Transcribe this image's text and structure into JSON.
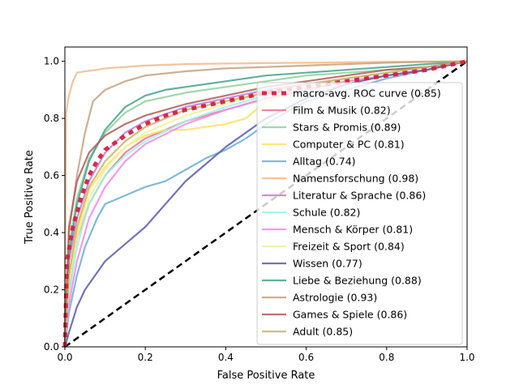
{
  "chart_data": {
    "type": "line",
    "xlabel": "False Positive Rate",
    "ylabel": "True Positive Rate",
    "xlim": [
      0,
      1
    ],
    "ylim": [
      0,
      1.05
    ],
    "xticks": [
      "0.0",
      "0.2",
      "0.4",
      "0.6",
      "0.8",
      "1.0"
    ],
    "yticks": [
      "0.0",
      "0.2",
      "0.4",
      "0.6",
      "0.8",
      "1.0"
    ],
    "grid": false,
    "legend_position": "lower-right",
    "chance_line": {
      "x": [
        0,
        1
      ],
      "y": [
        0,
        1
      ],
      "color": "#000000"
    },
    "series": [
      {
        "name": "macro-avg. ROC curve (0.85)",
        "color": "#d62040",
        "macro": true,
        "x": [
          0,
          0.005,
          0.02,
          0.04,
          0.06,
          0.08,
          0.1,
          0.15,
          0.2,
          0.25,
          0.3,
          0.35,
          0.4,
          0.5,
          0.6,
          0.7,
          0.8,
          0.9,
          1.0
        ],
        "y": [
          0,
          0.3,
          0.42,
          0.52,
          0.6,
          0.65,
          0.69,
          0.74,
          0.78,
          0.81,
          0.83,
          0.845,
          0.86,
          0.89,
          0.91,
          0.93,
          0.95,
          0.97,
          1.0
        ]
      },
      {
        "name": "Film & Musik (0.82)",
        "color": "#e9738a",
        "x": [
          0,
          0.01,
          0.03,
          0.06,
          0.1,
          0.15,
          0.2,
          0.3,
          0.4,
          0.5,
          0.6,
          0.7,
          0.8,
          0.9,
          1.0
        ],
        "y": [
          0,
          0.2,
          0.38,
          0.5,
          0.6,
          0.68,
          0.73,
          0.79,
          0.83,
          0.87,
          0.9,
          0.93,
          0.95,
          0.97,
          1.0
        ]
      },
      {
        "name": "Stars & Promis (0.89)",
        "color": "#8fd19a",
        "x": [
          0,
          0.01,
          0.03,
          0.06,
          0.1,
          0.15,
          0.2,
          0.3,
          0.4,
          0.5,
          0.6,
          0.7,
          0.8,
          0.9,
          1.0
        ],
        "y": [
          0,
          0.35,
          0.52,
          0.66,
          0.75,
          0.82,
          0.86,
          0.89,
          0.91,
          0.93,
          0.95,
          0.96,
          0.97,
          0.98,
          1.0
        ]
      },
      {
        "name": "Computer & PC (0.81)",
        "color": "#ffe060",
        "x": [
          0,
          0.01,
          0.03,
          0.06,
          0.1,
          0.15,
          0.2,
          0.25,
          0.3,
          0.4,
          0.45,
          0.5,
          0.6,
          0.7,
          0.8,
          0.9,
          1.0
        ],
        "y": [
          0,
          0.25,
          0.4,
          0.55,
          0.63,
          0.7,
          0.74,
          0.76,
          0.76,
          0.78,
          0.8,
          0.86,
          0.9,
          0.93,
          0.95,
          0.97,
          1.0
        ]
      },
      {
        "name": "Alltag (0.74)",
        "color": "#6aaed6",
        "x": [
          0,
          0.01,
          0.03,
          0.05,
          0.08,
          0.1,
          0.15,
          0.2,
          0.25,
          0.3,
          0.35,
          0.4,
          0.45,
          0.5,
          0.6,
          0.7,
          0.8,
          0.9,
          1.0
        ],
        "y": [
          0,
          0.12,
          0.25,
          0.35,
          0.45,
          0.5,
          0.53,
          0.56,
          0.58,
          0.62,
          0.66,
          0.69,
          0.73,
          0.78,
          0.86,
          0.9,
          0.94,
          0.97,
          1.0
        ]
      },
      {
        "name": "Namensforschung (0.98)",
        "color": "#f6b98a",
        "x": [
          0,
          0.003,
          0.01,
          0.02,
          0.03,
          0.05,
          0.08,
          0.1,
          0.15,
          0.2,
          0.3,
          0.4,
          0.6,
          0.8,
          1.0
        ],
        "y": [
          0,
          0.82,
          0.88,
          0.93,
          0.96,
          0.965,
          0.97,
          0.975,
          0.98,
          0.985,
          0.99,
          0.992,
          0.995,
          0.998,
          1.0
        ]
      },
      {
        "name": "Literatur & Sprache (0.86)",
        "color": "#c07ed8",
        "x": [
          0,
          0.01,
          0.03,
          0.06,
          0.1,
          0.15,
          0.2,
          0.3,
          0.4,
          0.5,
          0.6,
          0.7,
          0.8,
          0.9,
          1.0
        ],
        "y": [
          0,
          0.3,
          0.45,
          0.58,
          0.68,
          0.75,
          0.79,
          0.84,
          0.87,
          0.9,
          0.92,
          0.94,
          0.96,
          0.98,
          1.0
        ]
      },
      {
        "name": "Schule (0.82)",
        "color": "#9ef0f0",
        "x": [
          0,
          0.01,
          0.03,
          0.06,
          0.1,
          0.15,
          0.2,
          0.3,
          0.4,
          0.5,
          0.6,
          0.7,
          0.8,
          0.9,
          1.0
        ],
        "y": [
          0,
          0.18,
          0.35,
          0.5,
          0.6,
          0.67,
          0.72,
          0.79,
          0.84,
          0.88,
          0.91,
          0.94,
          0.96,
          0.98,
          1.0
        ]
      },
      {
        "name": "Mensch & Körper (0.81)",
        "color": "#f08ae6",
        "x": [
          0,
          0.01,
          0.03,
          0.06,
          0.1,
          0.15,
          0.2,
          0.3,
          0.4,
          0.5,
          0.6,
          0.7,
          0.8,
          0.9,
          1.0
        ],
        "y": [
          0,
          0.15,
          0.3,
          0.45,
          0.56,
          0.65,
          0.71,
          0.78,
          0.83,
          0.87,
          0.9,
          0.93,
          0.95,
          0.97,
          1.0
        ]
      },
      {
        "name": "Freizeit & Sport (0.84)",
        "color": "#eef29a",
        "x": [
          0,
          0.01,
          0.03,
          0.06,
          0.1,
          0.15,
          0.2,
          0.3,
          0.4,
          0.5,
          0.6,
          0.7,
          0.8,
          0.9,
          1.0
        ],
        "y": [
          0,
          0.22,
          0.38,
          0.52,
          0.62,
          0.7,
          0.75,
          0.81,
          0.85,
          0.89,
          0.92,
          0.94,
          0.96,
          0.98,
          1.0
        ]
      },
      {
        "name": "Wissen (0.77)",
        "color": "#5a5aa8",
        "x": [
          0,
          0.01,
          0.03,
          0.05,
          0.08,
          0.1,
          0.15,
          0.2,
          0.25,
          0.3,
          0.35,
          0.4,
          0.45,
          0.5,
          0.6,
          0.7,
          0.8,
          0.9,
          1.0
        ],
        "y": [
          0,
          0.05,
          0.14,
          0.2,
          0.26,
          0.3,
          0.36,
          0.42,
          0.5,
          0.58,
          0.64,
          0.7,
          0.75,
          0.8,
          0.87,
          0.92,
          0.95,
          0.97,
          1.0
        ]
      },
      {
        "name": "Liebe & Beziehung (0.88)",
        "color": "#46a38c",
        "x": [
          0,
          0.01,
          0.03,
          0.06,
          0.1,
          0.15,
          0.2,
          0.25,
          0.3,
          0.4,
          0.5,
          0.6,
          0.7,
          0.8,
          0.9,
          1.0
        ],
        "y": [
          0,
          0.32,
          0.5,
          0.65,
          0.76,
          0.84,
          0.88,
          0.9,
          0.91,
          0.93,
          0.95,
          0.96,
          0.97,
          0.98,
          0.99,
          1.0
        ]
      },
      {
        "name": "Astrologie (0.93)",
        "color": "#c8a07e",
        "x": [
          0,
          0.01,
          0.03,
          0.05,
          0.07,
          0.1,
          0.15,
          0.2,
          0.3,
          0.4,
          0.5,
          0.6,
          0.7,
          0.8,
          0.9,
          1.0
        ],
        "y": [
          0,
          0.4,
          0.6,
          0.75,
          0.86,
          0.9,
          0.93,
          0.95,
          0.965,
          0.975,
          0.98,
          0.985,
          0.99,
          0.995,
          0.998,
          1.0
        ]
      },
      {
        "name": "Games & Spiele (0.86)",
        "color": "#b05a5a",
        "x": [
          0,
          0.01,
          0.03,
          0.06,
          0.1,
          0.15,
          0.2,
          0.3,
          0.4,
          0.5,
          0.6,
          0.7,
          0.8,
          0.9,
          1.0
        ],
        "y": [
          0,
          0.42,
          0.58,
          0.68,
          0.74,
          0.78,
          0.81,
          0.85,
          0.88,
          0.91,
          0.93,
          0.95,
          0.97,
          0.98,
          1.0
        ]
      },
      {
        "name": "Adult (0.85)",
        "color": "#c8b46a",
        "x": [
          0,
          0.01,
          0.03,
          0.06,
          0.1,
          0.15,
          0.2,
          0.3,
          0.4,
          0.5,
          0.6,
          0.7,
          0.8,
          0.9,
          1.0
        ],
        "y": [
          0,
          0.25,
          0.42,
          0.56,
          0.65,
          0.72,
          0.77,
          0.83,
          0.86,
          0.89,
          0.92,
          0.94,
          0.96,
          0.98,
          1.0
        ]
      }
    ]
  }
}
